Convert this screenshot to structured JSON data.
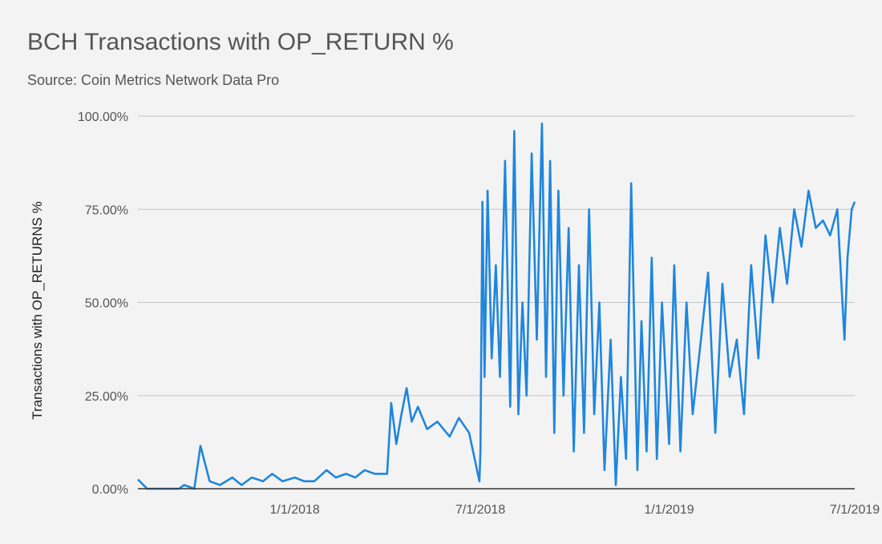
{
  "chart_data": {
    "type": "line",
    "title": "BCH Transactions with OP_RETURN %",
    "subtitle": "Source: Coin Metrics Network Data Pro",
    "xlabel": "",
    "ylabel": "Transactions with OP_RETURNS %",
    "x_ticks": [
      "1/1/2018",
      "7/1/2018",
      "1/1/2019",
      "7/1/2019"
    ],
    "y_ticks": [
      "0.00%",
      "25.00%",
      "50.00%",
      "75.00%",
      "100.00%"
    ],
    "ylim": [
      0,
      100
    ],
    "xlim": [
      "2017-08-01",
      "2019-07-01"
    ],
    "grid": true,
    "legend": "none",
    "series_color": "#1f86de",
    "series": [
      {
        "x": [
          "2017-08-01",
          "2017-08-10",
          "2017-08-20",
          "2017-09-01",
          "2017-09-10",
          "2017-09-15",
          "2017-09-25",
          "2017-10-01",
          "2017-10-10",
          "2017-10-20",
          "2017-11-01",
          "2017-11-10",
          "2017-11-20",
          "2017-12-01",
          "2017-12-10",
          "2017-12-20",
          "2018-01-01",
          "2018-01-10",
          "2018-01-20",
          "2018-02-01",
          "2018-02-10",
          "2018-02-20",
          "2018-03-01",
          "2018-03-10",
          "2018-03-20",
          "2018-04-01",
          "2018-04-05",
          "2018-04-10",
          "2018-04-15",
          "2018-04-20",
          "2018-04-25",
          "2018-05-01",
          "2018-05-10",
          "2018-05-20",
          "2018-06-01",
          "2018-06-10",
          "2018-06-20",
          "2018-06-30",
          "2018-07-01",
          "2018-07-03",
          "2018-07-05",
          "2018-07-08",
          "2018-07-12",
          "2018-07-16",
          "2018-07-20",
          "2018-07-25",
          "2018-07-30",
          "2018-08-03",
          "2018-08-07",
          "2018-08-11",
          "2018-08-15",
          "2018-08-20",
          "2018-08-25",
          "2018-08-30",
          "2018-09-03",
          "2018-09-07",
          "2018-09-11",
          "2018-09-15",
          "2018-09-20",
          "2018-09-25",
          "2018-09-30",
          "2018-10-05",
          "2018-10-10",
          "2018-10-15",
          "2018-10-20",
          "2018-10-25",
          "2018-10-30",
          "2018-11-05",
          "2018-11-10",
          "2018-11-15",
          "2018-11-20",
          "2018-11-25",
          "2018-12-01",
          "2018-12-05",
          "2018-12-10",
          "2018-12-15",
          "2018-12-20",
          "2018-12-25",
          "2019-01-01",
          "2019-01-06",
          "2019-01-12",
          "2019-01-18",
          "2019-01-24",
          "2019-02-01",
          "2019-02-08",
          "2019-02-15",
          "2019-02-22",
          "2019-03-01",
          "2019-03-08",
          "2019-03-15",
          "2019-03-22",
          "2019-03-29",
          "2019-04-05",
          "2019-04-12",
          "2019-04-19",
          "2019-04-26",
          "2019-05-03",
          "2019-05-10",
          "2019-05-17",
          "2019-05-24",
          "2019-05-31",
          "2019-06-07",
          "2019-06-14",
          "2019-06-21",
          "2019-06-24",
          "2019-06-28",
          "2019-07-01"
        ],
        "y": [
          2.5,
          0,
          0,
          0,
          0,
          1,
          0,
          11.5,
          2,
          1,
          3,
          1,
          3,
          2,
          4,
          2,
          3,
          2,
          2,
          5,
          3,
          4,
          3,
          5,
          4,
          4,
          23,
          12,
          20,
          27,
          18,
          22,
          16,
          18,
          14,
          19,
          15,
          2,
          10,
          77,
          30,
          80,
          35,
          60,
          30,
          88,
          22,
          96,
          20,
          50,
          25,
          90,
          40,
          98,
          30,
          88,
          15,
          80,
          25,
          70,
          10,
          60,
          15,
          75,
          20,
          50,
          5,
          40,
          1,
          30,
          8,
          82,
          5,
          45,
          10,
          62,
          8,
          50,
          12,
          60,
          10,
          50,
          20,
          40,
          58,
          15,
          55,
          30,
          40,
          20,
          60,
          35,
          68,
          50,
          70,
          55,
          75,
          65,
          80,
          70,
          72,
          68,
          75,
          40,
          62,
          75,
          77
        ]
      }
    ]
  }
}
